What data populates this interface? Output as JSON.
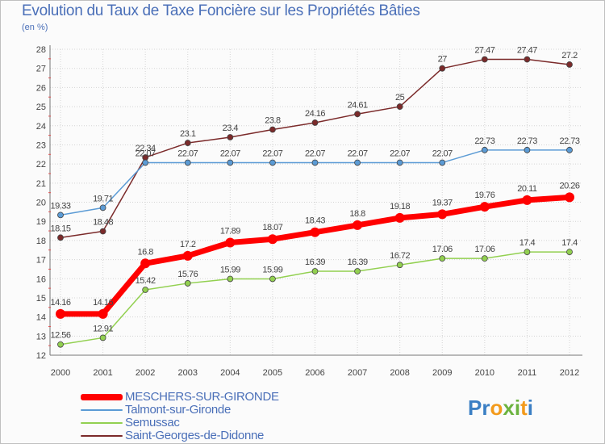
{
  "header": {
    "title": "Evolution du Taux de Taxe Foncière sur les Propriétés Bâties",
    "unit": "(en %)"
  },
  "logo": {
    "letters": [
      {
        "ch": "P",
        "color": "#3b7fc4"
      },
      {
        "ch": "r",
        "color": "#3b7fc4"
      },
      {
        "ch": "o",
        "color": "#f39a1b"
      },
      {
        "ch": "x",
        "color": "#6cb33f"
      },
      {
        "ch": "i",
        "color": "#6cb33f"
      },
      {
        "ch": "t",
        "color": "#f39a1b"
      },
      {
        "ch": "i",
        "color": "#3b7fc4"
      }
    ]
  },
  "chart_data": {
    "type": "line",
    "title": "Evolution du Taux de Taxe Foncière sur les Propriétés Bâties",
    "ylabel": "(en %)",
    "xlabel": "",
    "x": [
      "2000",
      "2001",
      "2002",
      "2003",
      "2004",
      "2005",
      "2006",
      "2007",
      "2008",
      "2009",
      "2010",
      "2011",
      "2012"
    ],
    "ylim": [
      12,
      28
    ],
    "yticks": [
      "12",
      "13",
      "14",
      "15",
      "16",
      "17",
      "18",
      "19",
      "20",
      "21",
      "22",
      "23",
      "24",
      "25",
      "26",
      "27",
      "28"
    ],
    "grid": true,
    "series": [
      {
        "name": "MESCHERS-SUR-GIRONDE",
        "color": "#ff0000",
        "width": 7,
        "marker": 6,
        "label_color": "#444444",
        "values": [
          14.16,
          14.16,
          16.8,
          17.2,
          17.89,
          18.07,
          18.43,
          18.8,
          19.18,
          19.37,
          19.76,
          20.11,
          20.26
        ],
        "labels": [
          "14.16",
          "14.16",
          "16.8",
          "17.2",
          "17.89",
          "18.07",
          "18.43",
          "18.8",
          "19.18",
          "19.37",
          "19.76",
          "20.11",
          "20.26"
        ]
      },
      {
        "name": "Talmont-sur-Gironde",
        "color": "#5b9bd5",
        "width": 1.5,
        "marker": 3.5,
        "label_color": "#444444",
        "values": [
          19.33,
          19.71,
          22.07,
          22.07,
          22.07,
          22.07,
          22.07,
          22.07,
          22.07,
          22.07,
          22.73,
          22.73,
          22.73
        ],
        "labels": [
          "19.33",
          "19.71",
          "22.07",
          "22.07",
          "22.07",
          "22.07",
          "22.07",
          "22.07",
          "22.07",
          "22.07",
          "22.73",
          "22.73",
          "22.73"
        ]
      },
      {
        "name": "Semussac",
        "color": "#92d050",
        "width": 1.5,
        "marker": 3.5,
        "label_color": "#444444",
        "values": [
          12.56,
          12.91,
          15.42,
          15.76,
          15.99,
          15.99,
          16.39,
          16.39,
          16.72,
          17.06,
          17.06,
          17.4,
          17.4
        ],
        "labels": [
          "12.56",
          "12.91",
          "15.42",
          "15.76",
          "15.99",
          "15.99",
          "16.39",
          "16.39",
          "16.72",
          "17.06",
          "17.06",
          "17.4",
          "17.4"
        ]
      },
      {
        "name": "Saint-Georges-de-Didonne",
        "color": "#7b2a2a",
        "width": 1.5,
        "marker": 3.5,
        "label_color": "#444444",
        "values": [
          18.15,
          18.48,
          22.34,
          23.1,
          23.4,
          23.8,
          24.16,
          24.61,
          25,
          27,
          27.47,
          27.47,
          27.2
        ],
        "labels": [
          "18.15",
          "18.48",
          "22.34",
          "23.1",
          "23.4",
          "23.8",
          "24.16",
          "24.61",
          "25",
          "27",
          "27.47",
          "27.47",
          "27.2"
        ]
      }
    ],
    "legend": {
      "items": [
        {
          "label": "MESCHERS-SUR-GIRONDE",
          "color": "#ff0000",
          "text_color": "#4a6fb8"
        },
        {
          "label": "Talmont-sur-Gironde",
          "color": "#5b9bd5",
          "text_color": "#4a6fb8"
        },
        {
          "label": "Semussac",
          "color": "#92d050",
          "text_color": "#4a6fb8"
        },
        {
          "label": "Saint-Georges-de-Didonne",
          "color": "#7b2a2a",
          "text_color": "#4a6fb8"
        }
      ]
    }
  }
}
